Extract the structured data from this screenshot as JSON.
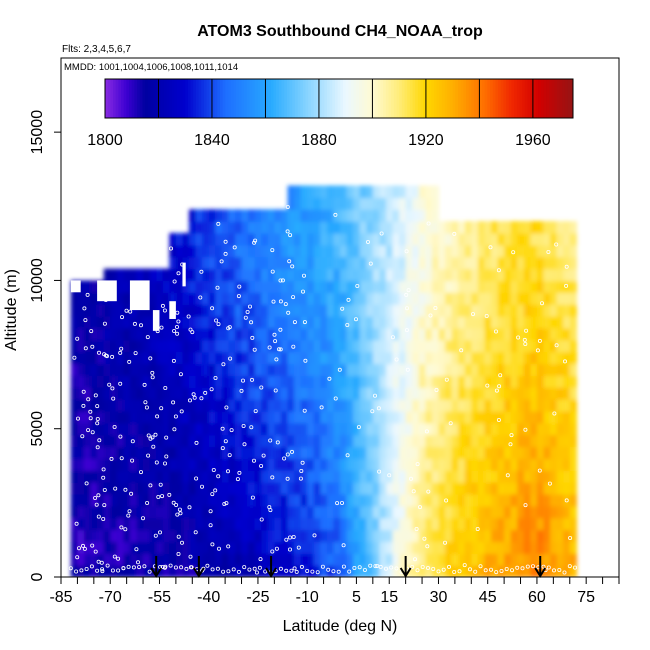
{
  "chart_data": {
    "type": "heatmap",
    "title": "ATOM3 Southbound CH4_NOAA_trop",
    "flights_note": "Flts: 2,3,4,5,6,7",
    "dates_note": "MMDD: 1001,1004,1006,1008,1011,1014",
    "xlabel": "Latitude (deg N)",
    "ylabel": "Altitude (m)",
    "xlim": [
      -85,
      85
    ],
    "ylim": [
      0,
      17500
    ],
    "x_ticks": [
      -85,
      -70,
      -55,
      -40,
      -25,
      -10,
      5,
      15,
      30,
      45,
      60,
      75
    ],
    "x_tick_labels": [
      "-85",
      "-70",
      "-55",
      "-40",
      "-25",
      "-10",
      "5",
      "15",
      "30",
      "45",
      "60",
      "75"
    ],
    "x_minor_ticks": [
      -80,
      -75,
      -65,
      -60,
      -50,
      -45,
      -35,
      -30,
      -20,
      -15,
      -5,
      0,
      10,
      20,
      25,
      35,
      40,
      50,
      55,
      65,
      70,
      80,
      85
    ],
    "y_ticks": [
      0,
      5000,
      10000,
      15000
    ],
    "y_tick_labels": [
      "0",
      "5000",
      "10000",
      "15000"
    ],
    "colorbar": {
      "min": 1800,
      "max": 1975,
      "ticks": [
        1800,
        1840,
        1880,
        1920,
        1960
      ],
      "tick_labels": [
        "1800",
        "1840",
        "1880",
        "1920",
        "1960"
      ],
      "boundaries": [
        1800,
        1820,
        1840,
        1860,
        1880,
        1900,
        1920,
        1940,
        1960
      ]
    },
    "profile_markers_lat": [
      -56,
      -43,
      -21,
      20,
      61
    ],
    "data_extent": {
      "lat_min": -82,
      "lat_max": 72,
      "alt_max": 12900
    },
    "ch4_by_latitude_band": {
      "latitudes": [
        -80,
        -70,
        -60,
        -50,
        -40,
        -30,
        -20,
        -10,
        0,
        5,
        10,
        15,
        20,
        25,
        30,
        40,
        50,
        60,
        70
      ],
      "surface_ppb": [
        1812,
        1812,
        1813,
        1814,
        1816,
        1820,
        1826,
        1832,
        1842,
        1860,
        1872,
        1886,
        1900,
        1912,
        1918,
        1926,
        1932,
        1940,
        1930
      ],
      "upper_ppb": [
        1816,
        1820,
        1824,
        1830,
        1838,
        1846,
        1852,
        1858,
        1866,
        1872,
        1878,
        1884,
        1890,
        1896,
        1900,
        1908,
        1914,
        1916,
        1910
      ]
    }
  }
}
